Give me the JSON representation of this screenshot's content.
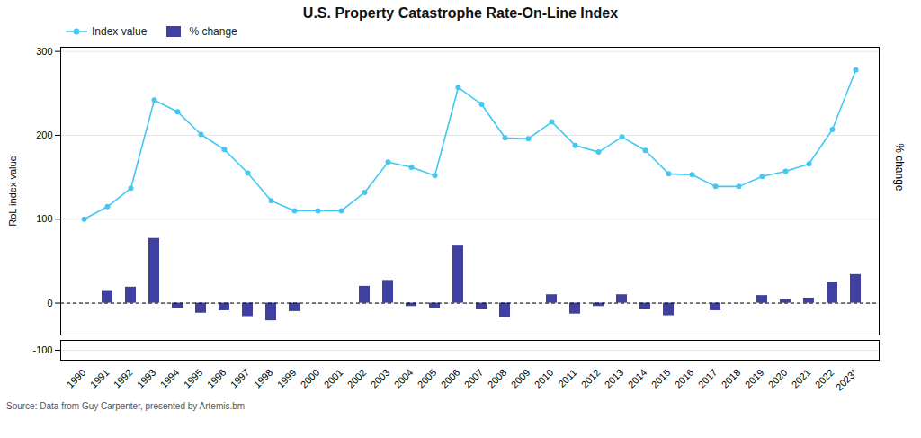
{
  "chart_data": [
    {
      "type": "combo",
      "title": "U.S. Property Catastrophe Rate-On-Line Index",
      "caption": "Source: Data from Guy Carpenter, presented by Artemis.bm",
      "ylabel": "RoL index value",
      "y2label": "% change",
      "categories": [
        "1990",
        "1991",
        "1992",
        "1993",
        "1994",
        "1995",
        "1996",
        "1997",
        "1998",
        "1999",
        "2000",
        "2001",
        "2002",
        "2003",
        "2004",
        "2005",
        "2006",
        "2007",
        "2008",
        "2009",
        "2010",
        "2011",
        "2012",
        "2013",
        "2014",
        "2015",
        "2016",
        "2017",
        "2018",
        "2019",
        "2020",
        "2021",
        "2022",
        "2023*"
      ],
      "series": [
        {
          "name": "Index value",
          "type": "line",
          "color": "#42C8F4",
          "marker": "circle",
          "values": [
            100,
            115,
            137,
            242,
            228,
            201,
            183,
            155,
            122,
            110,
            110,
            110,
            132,
            168,
            162,
            152,
            257,
            237,
            197,
            196,
            216,
            188,
            180,
            198,
            182,
            154,
            153,
            139,
            139,
            151,
            157,
            166,
            207,
            278
          ]
        },
        {
          "name": "% change",
          "type": "bar",
          "color": "#4040A0",
          "values": [
            0,
            15,
            19,
            77,
            -6,
            -12,
            -9,
            -16,
            -21,
            -10,
            0,
            0,
            20,
            27,
            -4,
            -6,
            69,
            -8,
            -17,
            0,
            10,
            -13,
            -4,
            10,
            -8,
            -15,
            0,
            -9,
            0,
            9,
            4,
            6,
            25,
            34
          ]
        }
      ],
      "ylim": [
        -38,
        305
      ],
      "yticks": [
        0,
        100,
        200,
        300
      ],
      "grid": true,
      "legend": "upper left",
      "tick_labels": "y"
    },
    {
      "type": "line",
      "categories": [
        "1990",
        "1991",
        "1992",
        "1993",
        "1994",
        "1995",
        "1996",
        "1997",
        "1998",
        "1999",
        "2000",
        "2001",
        "2002",
        "2003",
        "2004",
        "2005",
        "2006",
        "2007",
        "2008",
        "2009",
        "2010",
        "2011",
        "2012",
        "2013",
        "2014",
        "2015",
        "2016",
        "2017",
        "2018",
        "2019",
        "2020",
        "2021",
        "2022",
        "2023*"
      ],
      "series": [],
      "ylim": [
        -110,
        -90
      ],
      "yticks": [
        -100
      ],
      "grid": true
    }
  ]
}
